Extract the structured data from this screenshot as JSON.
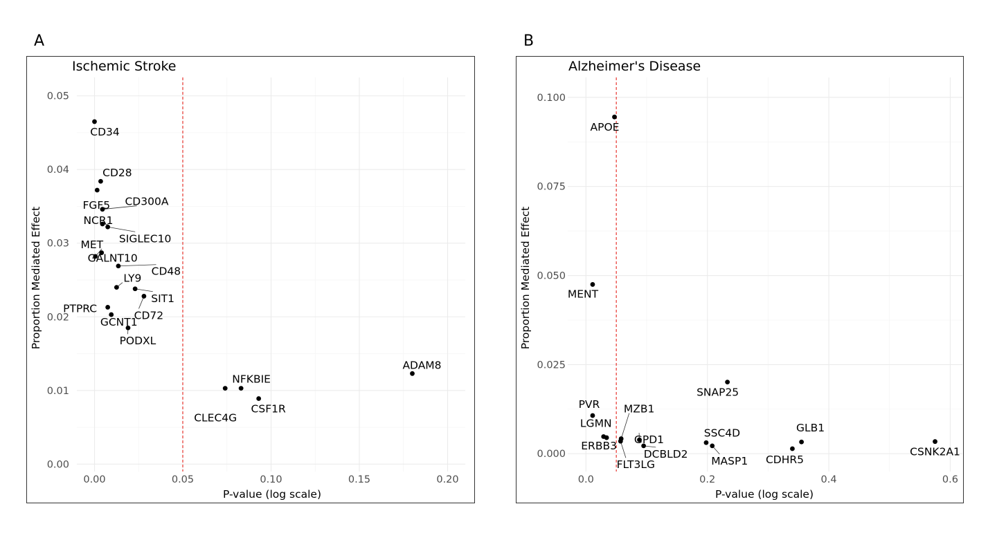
{
  "chart_data": [
    {
      "panel": "A",
      "type": "scatter",
      "title": "Ischemic Stroke",
      "xlabel": "P-value (log scale)",
      "ylabel": "Proportion Mediated Effect",
      "xlim": [
        -0.01,
        0.21
      ],
      "ylim": [
        -0.001,
        0.0525
      ],
      "xticks": [
        0.0,
        0.05,
        0.1,
        0.15,
        0.2
      ],
      "xtick_labels": [
        "0.00",
        "0.05",
        "0.10",
        "0.15",
        "0.20"
      ],
      "yticks": [
        0.0,
        0.01,
        0.02,
        0.03,
        0.04,
        0.05
      ],
      "ytick_labels": [
        "0.00",
        "0.01",
        "0.02",
        "0.03",
        "0.04",
        "0.05"
      ],
      "threshold": 0.05,
      "points": [
        {
          "label": "CD34",
          "x": 0.0,
          "y": 0.0465
        },
        {
          "label": "CD28",
          "x": 0.0035,
          "y": 0.0384
        },
        {
          "label": "FGF5",
          "x": 0.0015,
          "y": 0.0372
        },
        {
          "label": "CD300A",
          "x": 0.0045,
          "y": 0.0346
        },
        {
          "label": "NCR1",
          "x": 0.0045,
          "y": 0.0326
        },
        {
          "label": "SIGLEC10",
          "x": 0.0075,
          "y": 0.0322
        },
        {
          "label": "MET",
          "x": 0.0005,
          "y": 0.0282
        },
        {
          "label": "GALNT10",
          "x": 0.004,
          "y": 0.0287
        },
        {
          "label": "CD48",
          "x": 0.0135,
          "y": 0.0269
        },
        {
          "label": "LY9",
          "x": 0.0125,
          "y": 0.024
        },
        {
          "label": "SIT1",
          "x": 0.023,
          "y": 0.0238
        },
        {
          "label": "CD72",
          "x": 0.028,
          "y": 0.0228
        },
        {
          "label": "PTPRC",
          "x": 0.0075,
          "y": 0.0213
        },
        {
          "label": "GCNT1",
          "x": 0.0095,
          "y": 0.0203
        },
        {
          "label": "PODXL",
          "x": 0.019,
          "y": 0.0185
        },
        {
          "label": "NFKBIE",
          "x": 0.083,
          "y": 0.0103
        },
        {
          "label": "CLEC4G",
          "x": 0.074,
          "y": 0.0103
        },
        {
          "label": "CSF1R",
          "x": 0.093,
          "y": 0.0089
        },
        {
          "label": "ADAM8",
          "x": 0.18,
          "y": 0.0123
        }
      ]
    },
    {
      "panel": "B",
      "type": "scatter",
      "title": "Alzheimer's Disease",
      "xlabel": "P-value (log scale)",
      "ylabel": "Proportion Mediated Effect",
      "xlim": [
        -0.03,
        0.62
      ],
      "ylim": [
        -0.005,
        0.1056
      ],
      "xticks": [
        0.0,
        0.2,
        0.4,
        0.6
      ],
      "xtick_labels": [
        "0.0",
        "0.2",
        "0.4",
        "0.6"
      ],
      "yticks": [
        0.0,
        0.025,
        0.05,
        0.075,
        0.1
      ],
      "ytick_labels": [
        "0.000",
        "0.025",
        "0.050",
        "0.075",
        "0.100"
      ],
      "threshold": 0.05,
      "points": [
        {
          "label": "APOE",
          "x": 0.047,
          "y": 0.0945
        },
        {
          "label": "MENT",
          "x": 0.011,
          "y": 0.0475
        },
        {
          "label": "SNAP25",
          "x": 0.233,
          "y": 0.0201
        },
        {
          "label": "PVR",
          "x": 0.011,
          "y": 0.0107
        },
        {
          "label": "MZB1",
          "x": 0.058,
          "y": 0.0042
        },
        {
          "label": "LGMN",
          "x": 0.029,
          "y": 0.0048
        },
        {
          "label": "ERBB3",
          "x": 0.034,
          "y": 0.0045
        },
        {
          "label": "FLT3LG",
          "x": 0.057,
          "y": 0.0035
        },
        {
          "label": "GPD1",
          "x": 0.088,
          "y": 0.0039
        },
        {
          "label": "DCBLD2",
          "x": 0.095,
          "y": 0.0022
        },
        {
          "label": "SSC4D",
          "x": 0.198,
          "y": 0.0031
        },
        {
          "label": "MASP1",
          "x": 0.208,
          "y": 0.0022
        },
        {
          "label": "GLB1",
          "x": 0.355,
          "y": 0.0033
        },
        {
          "label": "CDHR5",
          "x": 0.34,
          "y": 0.0014
        },
        {
          "label": "CSNK2A1",
          "x": 0.575,
          "y": 0.0034
        }
      ]
    }
  ]
}
